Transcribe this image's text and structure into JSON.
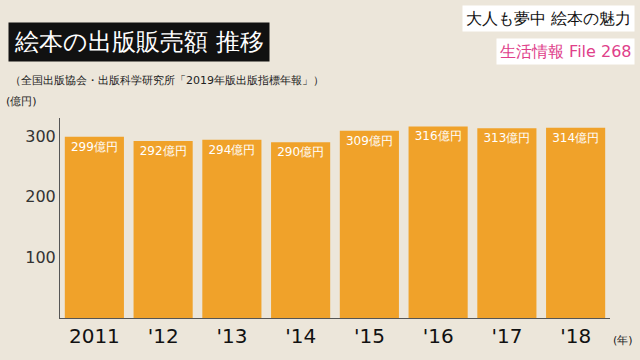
{
  "chart_data": {
    "type": "bar",
    "title": "絵本の出版販売額 推移",
    "subtitle": "（全国出版協会・出版科学研究所「2019年版出版指標年報」）",
    "annotations": [
      "大人も夢中 絵本の魅力",
      "生活情報 File 268"
    ],
    "x_label": "(年)",
    "y_label": "(億円)",
    "categories": [
      "2011",
      "'12",
      "'13",
      "'14",
      "'15",
      "'16",
      "'17",
      "'18"
    ],
    "values": [
      299,
      292,
      294,
      290,
      309,
      316,
      313,
      314
    ],
    "value_labels": [
      "299億円",
      "292億円",
      "294億円",
      "290億円",
      "309億円",
      "316億円",
      "313億円",
      "314億円"
    ],
    "data_labels": true,
    "color": "#f0a22a",
    "ylim": [
      0,
      330
    ],
    "yticks": [
      100,
      200,
      300
    ],
    "grid": false
  }
}
